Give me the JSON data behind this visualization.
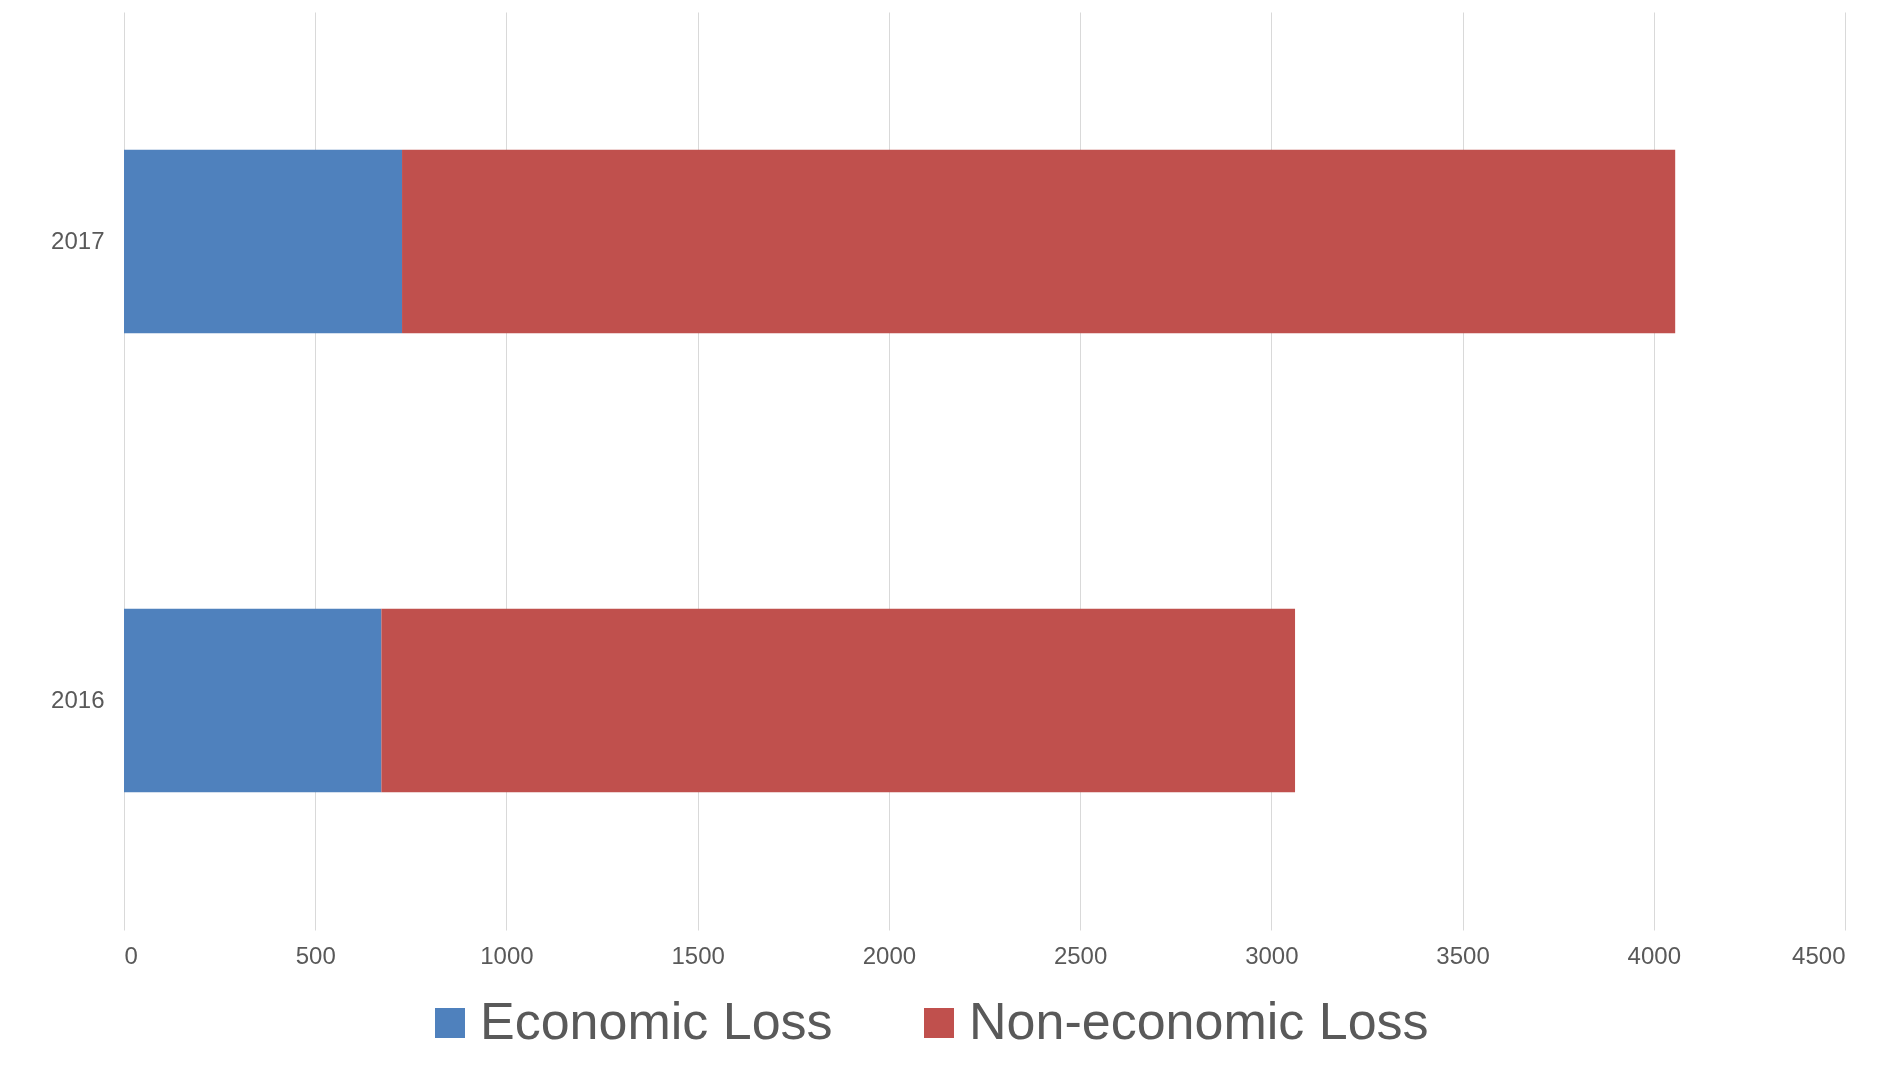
{
  "chart_data": {
    "type": "bar",
    "orientation": "horizontal",
    "stacked": true,
    "categories": [
      "2017",
      "2016"
    ],
    "series": [
      {
        "name": "Economic Loss",
        "color": "#4f81bd",
        "values": [
          727,
          673
        ]
      },
      {
        "name": "Non-economic Loss",
        "color": "#c0504d",
        "values": [
          3329,
          2389
        ]
      }
    ],
    "xlim": [
      0,
      4500
    ],
    "xticks": [
      0,
      500,
      1000,
      1500,
      2000,
      2500,
      3000,
      3500,
      4000,
      4500
    ],
    "grid": "x",
    "legend": "bottom"
  }
}
